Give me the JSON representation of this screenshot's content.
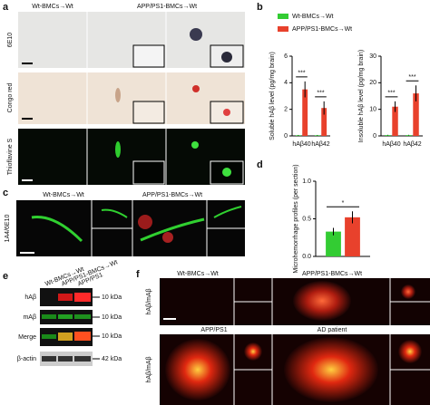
{
  "panel_labels": [
    "a",
    "b",
    "c",
    "d",
    "e",
    "f"
  ],
  "panel_a": {
    "columns": [
      "Wt-BMCs→Wt",
      "APP/PS1-BMCs→Wt"
    ],
    "rows": [
      "6E10",
      "Congo red",
      "Thioflavine S"
    ]
  },
  "panel_c": {
    "columns": [
      "Wt-BMCs→Wt",
      "APP/PS1-BMCs→Wt"
    ],
    "row": "1A4/6E10"
  },
  "panel_e": {
    "columns": [
      "Wt-BMCs→Wt",
      "APP/PS1-BMCs→Wt",
      "APP/PS1"
    ],
    "rows": [
      "hAβ",
      "mAβ",
      "Merge",
      "β-actin"
    ],
    "markers": [
      "10 kDa",
      "10 kDa",
      "10 kDa",
      "42 kDa"
    ]
  },
  "panel_f": {
    "top_columns": [
      "Wt-BMCs→Wt",
      "APP/PS1-BMCs→Wt"
    ],
    "bottom_columns": [
      "APP/PS1",
      "AD patient"
    ],
    "rows": [
      "hAβ/mAβ",
      "hAβ/mAβ"
    ]
  },
  "chart_data": [
    {
      "type": "bar",
      "ylabel": "Soluble hAβ level (pg/mg brain)",
      "categories": [
        "hAβ40",
        "hAβ42"
      ],
      "series": [
        {
          "name": "Wt-BMCs→Wt",
          "color": "#33cc33",
          "values": [
            0.05,
            0.05
          ],
          "errors": [
            0.02,
            0.02
          ]
        },
        {
          "name": "APP/PS1-BMCs→Wt",
          "color": "#e8412c",
          "values": [
            3.5,
            2.1
          ],
          "errors": [
            0.6,
            0.5
          ]
        }
      ],
      "annotations": [
        "***",
        "***"
      ],
      "ylim": [
        0,
        6
      ],
      "yticks": [
        0,
        2,
        4,
        6
      ]
    },
    {
      "type": "bar",
      "ylabel": "Insoluble hAβ level (pg/mg brain)",
      "categories": [
        "hAβ40",
        "hAβ42"
      ],
      "series": [
        {
          "color": "#33cc33",
          "values": [
            0.3,
            0.3
          ],
          "errors": [
            0.1,
            0.1
          ]
        },
        {
          "color": "#e8412c",
          "values": [
            11,
            16
          ],
          "errors": [
            2,
            3
          ]
        }
      ],
      "annotations": [
        "***",
        "***"
      ],
      "ylim": [
        0,
        30
      ],
      "yticks": [
        0,
        10,
        20,
        30
      ]
    },
    {
      "type": "bar",
      "ylabel": "Microhemorrhage profiles (per section)",
      "categories": [
        null
      ],
      "series": [
        {
          "color": "#33cc33",
          "values": [
            0.33
          ],
          "errors": [
            0.05
          ]
        },
        {
          "color": "#e8412c",
          "values": [
            0.52
          ],
          "errors": [
            0.08
          ]
        }
      ],
      "annotations": [
        "*"
      ],
      "ylim": [
        0,
        1
      ],
      "yticks": [
        {
          "value": 0,
          "label": "0.0"
        },
        0.5,
        {
          "value": 1,
          "label": "1.0"
        }
      ]
    }
  ]
}
